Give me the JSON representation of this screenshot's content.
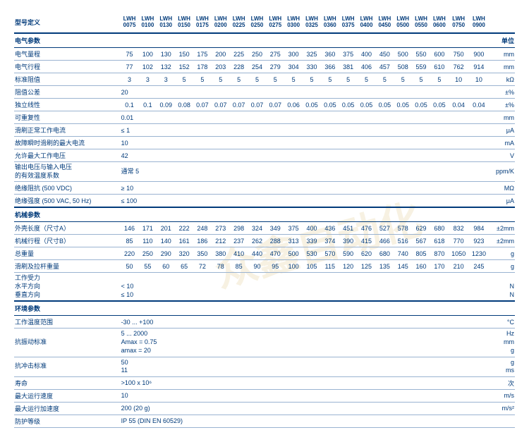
{
  "watermark": "众鑫自动化",
  "header": {
    "label": "型号定义",
    "cols": [
      "LWH 0075",
      "LWH 0100",
      "LWH 0130",
      "LWH 0150",
      "LWH 0175",
      "LWH 0200",
      "LWH 0225",
      "LWH 0250",
      "LWH 0275",
      "LWH 0300",
      "LWH 0325",
      "LWH 0360",
      "LWH 0375",
      "LWH 0400",
      "LWH 0450",
      "LWH 0500",
      "LWH 0550",
      "LWH 0600",
      "LWH 0750",
      "LWH 0900"
    ],
    "unit": ""
  },
  "sections": [
    {
      "title": "电气参数",
      "unit_label": "单位",
      "rows": [
        {
          "label": "电气量程",
          "vals": [
            "75",
            "100",
            "130",
            "150",
            "175",
            "200",
            "225",
            "250",
            "275",
            "300",
            "325",
            "360",
            "375",
            "400",
            "450",
            "500",
            "550",
            "600",
            "750",
            "900"
          ],
          "unit": "mm"
        },
        {
          "label": "电气行程",
          "vals": [
            "77",
            "102",
            "132",
            "152",
            "178",
            "203",
            "228",
            "254",
            "279",
            "304",
            "330",
            "366",
            "381",
            "406",
            "457",
            "508",
            "559",
            "610",
            "762",
            "914"
          ],
          "unit": "mm"
        },
        {
          "label": "标准阻值",
          "vals": [
            "3",
            "3",
            "3",
            "5",
            "5",
            "5",
            "5",
            "5",
            "5",
            "5",
            "5",
            "5",
            "5",
            "5",
            "5",
            "5",
            "5",
            "5",
            "10",
            "10"
          ],
          "unit": "kΩ"
        },
        {
          "label": "阻值公差",
          "span": "20",
          "unit": "±%"
        },
        {
          "label": "独立线性",
          "vals": [
            "0.1",
            "0.1",
            "0.09",
            "0.08",
            "0.07",
            "0.07",
            "0.07",
            "0.07",
            "0.07",
            "0.06",
            "0.05",
            "0.05",
            "0.05",
            "0.05",
            "0.05",
            "0.05",
            "0.05",
            "0.05",
            "0.04",
            "0.04"
          ],
          "unit": "±%"
        },
        {
          "label": "可重复性",
          "span": "0.01",
          "unit": "mm"
        },
        {
          "label": "滑刷正常工作电流",
          "span": "≤ 1",
          "unit": "μA"
        },
        {
          "label": "故障瞬时滑刷的最大电流",
          "span": "10",
          "unit": "mA"
        },
        {
          "label": "允许最大工作电压",
          "span": "42",
          "unit": "V"
        },
        {
          "label": "输出电压与输入电压\n的有效温度系数",
          "span": "通常 5",
          "unit": "ppm/K"
        },
        {
          "label": "绝缘阻抗 (500 VDC)",
          "span": "≥ 10",
          "unit": "MΩ"
        },
        {
          "label": "绝缘强度 (500 VAC, 50 Hz)",
          "span": "≤ 100",
          "unit": "μA"
        }
      ]
    },
    {
      "title": "机械参数",
      "unit_label": "",
      "rows": [
        {
          "label": "外壳长度（尺寸A）",
          "vals": [
            "146",
            "171",
            "201",
            "222",
            "248",
            "273",
            "298",
            "324",
            "349",
            "375",
            "400",
            "436",
            "451",
            "476",
            "527",
            "578",
            "629",
            "680",
            "832",
            "984"
          ],
          "unit": "±2mm"
        },
        {
          "label": "机械行程（尺寸B）",
          "vals": [
            "85",
            "110",
            "140",
            "161",
            "186",
            "212",
            "237",
            "262",
            "288",
            "313",
            "339",
            "374",
            "390",
            "415",
            "466",
            "516",
            "567",
            "618",
            "770",
            "923"
          ],
          "unit": "±2mm"
        },
        {
          "label": "总重量",
          "vals": [
            "220",
            "250",
            "290",
            "320",
            "350",
            "380",
            "410",
            "440",
            "470",
            "500",
            "530",
            "570",
            "590",
            "620",
            "680",
            "740",
            "805",
            "870",
            "1050",
            "1230"
          ],
          "unit": "g"
        },
        {
          "label": "滑刷及拉杆重量",
          "vals": [
            "50",
            "55",
            "60",
            "65",
            "72",
            "78",
            "85",
            "90",
            "95",
            "100",
            "105",
            "115",
            "120",
            "125",
            "135",
            "145",
            "160",
            "170",
            "210",
            "245"
          ],
          "unit": "g"
        },
        {
          "label": "工作受力\n水平方向\n垂直方向",
          "span": "\n< 10\n≤ 10",
          "unit": "\nN\nN"
        }
      ]
    },
    {
      "title": "环境参数",
      "unit_label": "",
      "rows": [
        {
          "label": "工作温度范围",
          "span": "-30 ... +100",
          "unit": "°C"
        },
        {
          "label": "抗振动标准",
          "span": "5 ... 2000\nAmax = 0.75\namax = 20",
          "unit": "Hz\nmm\ng"
        },
        {
          "label": "抗冲击标准",
          "span": "50\n11",
          "unit": "g\nms"
        },
        {
          "label": "寿命",
          "span": ">100 x 10⁶",
          "unit": "次"
        },
        {
          "label": "最大运行速度",
          "span": "10",
          "unit": "m/s"
        },
        {
          "label": "最大运行加速度",
          "span": "200 (20 g)",
          "unit": "m/s²"
        },
        {
          "label": "防护等级",
          "span": "IP 55 (DIN EN 60529)",
          "unit": ""
        }
      ]
    }
  ],
  "colors": {
    "border_main": "#003a7a",
    "border_sub": "#9ab3d1",
    "text": "#003a7a",
    "bg": "#ffffff"
  }
}
